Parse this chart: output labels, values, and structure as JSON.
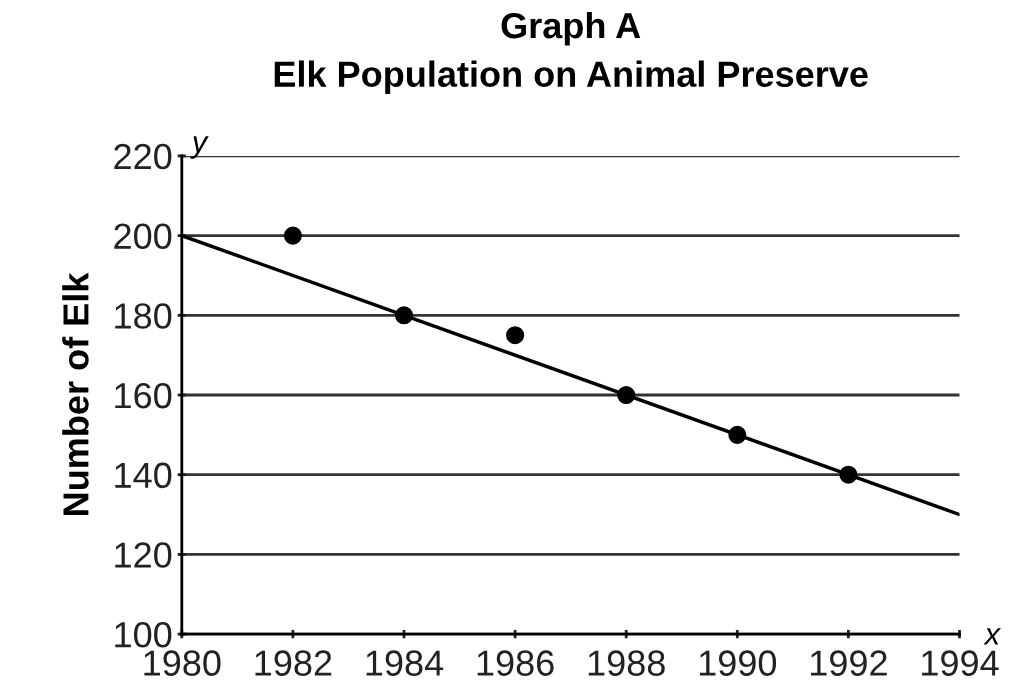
{
  "chart_data": {
    "type": "scatter",
    "title": "Graph A",
    "subtitle": "Elk Population on Animal Preserve",
    "ylabel": "Number of Elk",
    "annotations": [
      "y",
      "x"
    ],
    "series": [
      {
        "color": "#000000",
        "marker": "circle",
        "x": [
          1982,
          1984,
          1986,
          1988,
          1990,
          1992
        ],
        "values": [
          200,
          180,
          175,
          160,
          150,
          140
        ]
      },
      {
        "type": "line",
        "color": "#000000",
        "line_style": "solid",
        "x": [
          1980,
          1994
        ],
        "values": [
          200,
          130
        ]
      }
    ],
    "xlim": [
      1980,
      1994
    ],
    "xticks": [
      1980,
      1982,
      1984,
      1986,
      1988,
      1990,
      1992,
      1994
    ],
    "ylim": [
      100,
      220
    ],
    "yticks": [
      100,
      120,
      140,
      160,
      180,
      200,
      220
    ],
    "grid": "y"
  }
}
